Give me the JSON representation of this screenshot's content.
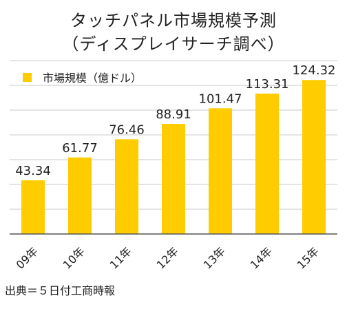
{
  "chart_data": {
    "type": "bar",
    "title": "タッチパネル市場規模予測",
    "subtitle": "（ディスプレイサーチ調べ）",
    "categories": [
      "09年",
      "10年",
      "11年",
      "12年",
      "13年",
      "14年",
      "15年"
    ],
    "series": [
      {
        "name": "市場規模（億ドル）",
        "values": [
          43.34,
          61.77,
          76.46,
          88.91,
          101.47,
          113.31,
          124.32
        ]
      }
    ],
    "ylim": [
      0,
      140
    ],
    "grid": true,
    "legend": "top-left",
    "color": "#FFCC00",
    "source": "出典＝５日付工商時報"
  }
}
